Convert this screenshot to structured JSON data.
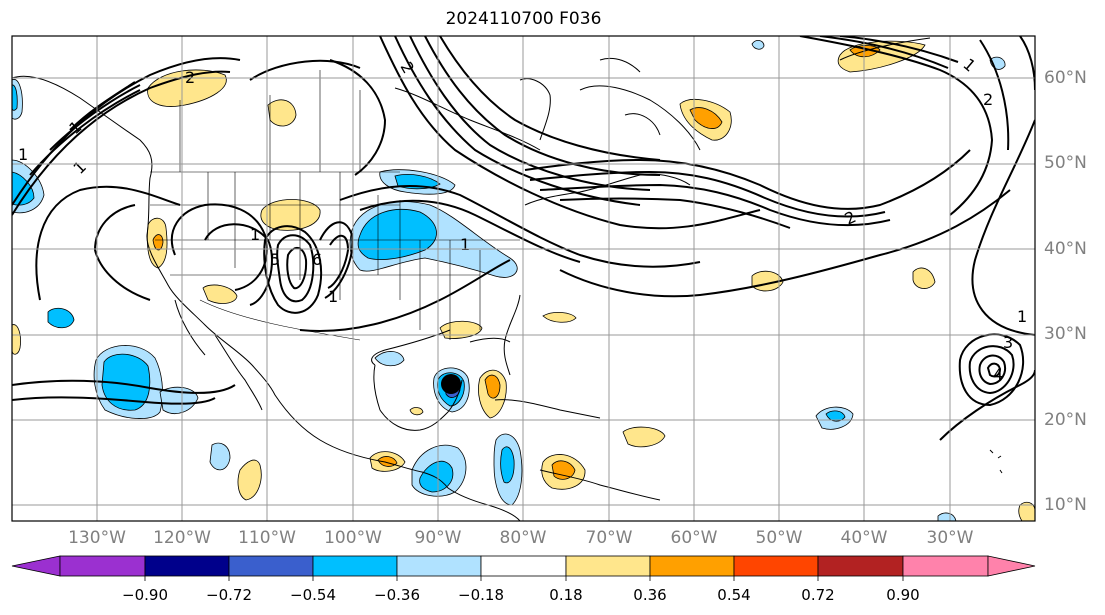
{
  "title": "2024110700 F036",
  "lat_labels": [
    "60°N",
    "50°N",
    "40°N",
    "30°N",
    "20°N",
    "10°N"
  ],
  "lon_labels": [
    "130°W",
    "120°W",
    "110°W",
    "100°W",
    "90°W",
    "80°W",
    "70°W",
    "60°W",
    "50°W",
    "40°W",
    "30°W"
  ],
  "colorbar": {
    "ticks": [
      "−0.90",
      "−0.72",
      "−0.54",
      "−0.36",
      "−0.18",
      "0.18",
      "0.36",
      "0.54",
      "0.72",
      "0.90"
    ],
    "colors": [
      "#9b30d0",
      "#00008b",
      "#3a5fcd",
      "#00bfff",
      "#b0e2ff",
      "#ffffff",
      "#ffe68c",
      "#ffa000",
      "#ff4500",
      "#b22222",
      "#ff82ab"
    ]
  },
  "contour_labels": [
    "2",
    "1",
    "1",
    "5",
    "1",
    "6",
    "1",
    "1",
    "2",
    "1",
    "2",
    "3",
    "4",
    "1",
    "1",
    "2"
  ],
  "storm_marker": "black-dot"
}
